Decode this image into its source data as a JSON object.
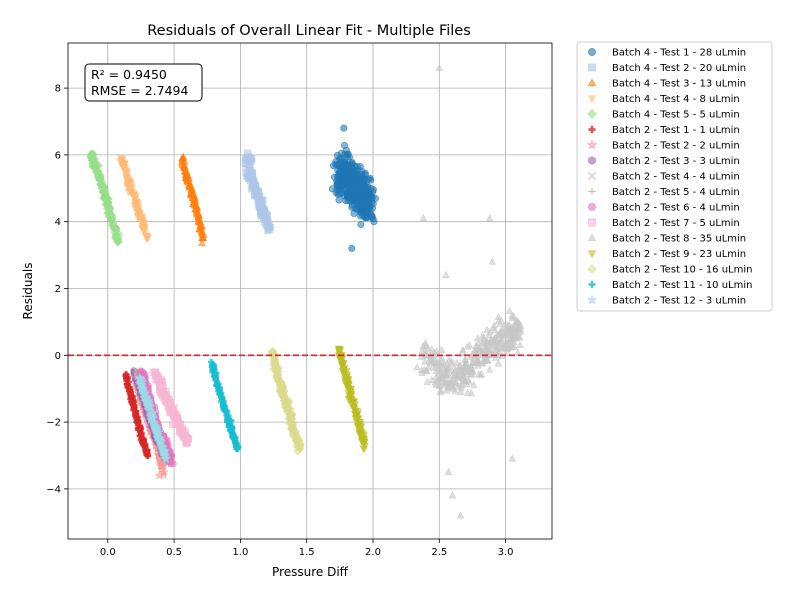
{
  "chart_data": {
    "type": "scatter",
    "title": "Residuals of Overall Linear Fit - Multiple Files",
    "xlabel": "Pressure Diff",
    "ylabel": "Residuals",
    "xlim": [
      -0.3,
      3.35
    ],
    "ylim": [
      -5.5,
      9.35
    ],
    "xticks": [
      0.0,
      0.5,
      1.0,
      1.5,
      2.0,
      2.5,
      3.0
    ],
    "xtick_labels": [
      "0.0",
      "0.5",
      "1.0",
      "1.5",
      "2.0",
      "2.5",
      "3.0"
    ],
    "yticks": [
      -4,
      -2,
      0,
      2,
      4,
      6,
      8
    ],
    "ytick_labels": [
      "−4",
      "−2",
      "0",
      "2",
      "4",
      "6",
      "8"
    ],
    "grid": true,
    "legend_position": "outside-right-top",
    "reference_line": {
      "y": 0,
      "style": "dashed",
      "color": "#d62728"
    },
    "stats_box": {
      "r2": "R² = 0.9450",
      "rmse": "RMSE = 2.7494"
    },
    "series": [
      {
        "name": "Batch 4 - Test 1 - 28 uLmin",
        "color": "#1f77b4",
        "marker": "circle",
        "x": [
          1.74,
          1.78,
          1.82,
          1.86,
          1.9,
          1.94,
          1.97
        ],
        "y": [
          5.3,
          5.5,
          5.2,
          5.0,
          4.8,
          4.6,
          4.6
        ],
        "x_spread": 0.11,
        "y_spread": 1.3
      },
      {
        "name": "Batch 4 - Test 2 - 20 uLmin",
        "color": "#aec7e8",
        "marker": "square",
        "x": [
          1.05,
          1.09,
          1.13,
          1.17,
          1.21
        ],
        "y": [
          5.9,
          5.3,
          4.8,
          4.3,
          3.8
        ],
        "x_spread": 0.05,
        "y_spread": 0.35
      },
      {
        "name": "Batch 4 - Test 3 - 13 uLmin",
        "color": "#ff7f0e",
        "marker": "triangle-up",
        "x": [
          0.56,
          0.6,
          0.64,
          0.68,
          0.72
        ],
        "y": [
          5.9,
          5.3,
          4.8,
          4.2,
          3.5
        ],
        "x_spread": 0.02,
        "y_spread": 0.25
      },
      {
        "name": "Batch 4 - Test 4 - 8 uLmin",
        "color": "#ffbb78",
        "marker": "triangle-down",
        "x": [
          0.1,
          0.15,
          0.2,
          0.25,
          0.3
        ],
        "y": [
          5.9,
          5.3,
          4.7,
          4.1,
          3.5
        ],
        "x_spread": 0.03,
        "y_spread": 0.25
      },
      {
        "name": "Batch 4 - Test 5 - 5 uLmin",
        "color": "#98df8a",
        "marker": "diamond",
        "x": [
          -0.13,
          -0.08,
          -0.03,
          0.02,
          0.08
        ],
        "y": [
          6.0,
          5.5,
          4.9,
          4.2,
          3.4
        ],
        "x_spread": 0.03,
        "y_spread": 0.25
      },
      {
        "name": "Batch 2 - Test 1 - 1 uLmin",
        "color": "#d62728",
        "marker": "plus",
        "x": [
          0.14,
          0.18,
          0.22,
          0.26,
          0.3
        ],
        "y": [
          -0.6,
          -1.3,
          -1.9,
          -2.5,
          -3.0
        ],
        "x_spread": 0.02,
        "y_spread": 0.2
      },
      {
        "name": "Batch 2 - Test 2 - 2 uLmin",
        "color": "#ff9896",
        "marker": "star",
        "x": [
          0.2,
          0.26,
          0.32,
          0.38,
          0.42
        ],
        "y": [
          -0.6,
          -1.4,
          -2.1,
          -2.8,
          -3.5
        ],
        "x_spread": 0.02,
        "y_spread": 0.2
      },
      {
        "name": "Batch 2 - Test 3 - 3 uLmin",
        "color": "#9467bd",
        "marker": "hexagon",
        "x": [
          0.2,
          0.26,
          0.32,
          0.38,
          0.44
        ],
        "y": [
          -0.5,
          -1.2,
          -1.9,
          -2.6,
          -3.1
        ],
        "x_spread": 0.02,
        "y_spread": 0.2
      },
      {
        "name": "Batch 2 - Test 4 - 4 uLmin",
        "color": "#c5b0d5",
        "marker": "x",
        "x": [
          0.22,
          0.28,
          0.34,
          0.4,
          0.46
        ],
        "y": [
          -0.5,
          -1.2,
          -1.9,
          -2.6,
          -3.2
        ],
        "x_spread": 0.02,
        "y_spread": 0.2
      },
      {
        "name": "Batch 2 - Test 5 - 4 uLmin",
        "color": "#c49c94",
        "marker": "thin-plus",
        "x": [
          0.22,
          0.28,
          0.34,
          0.4,
          0.46
        ],
        "y": [
          -0.5,
          -1.2,
          -1.9,
          -2.6,
          -3.2
        ],
        "x_spread": 0.02,
        "y_spread": 0.2
      },
      {
        "name": "Batch 2 - Test 6 - 4 uLmin",
        "color": "#e377c2",
        "marker": "circle",
        "x": [
          0.26,
          0.3,
          0.34,
          0.38,
          0.44,
          0.48
        ],
        "y": [
          -0.5,
          -1.1,
          -1.6,
          -2.2,
          -2.7,
          -3.2
        ],
        "x_spread": 0.03,
        "y_spread": 0.25
      },
      {
        "name": "Batch 2 - Test 7 - 5 uLmin",
        "color": "#f7b6d2",
        "marker": "square",
        "x": [
          0.36,
          0.42,
          0.48,
          0.54,
          0.6
        ],
        "y": [
          -0.5,
          -1.1,
          -1.6,
          -2.1,
          -2.6
        ],
        "x_spread": 0.04,
        "y_spread": 0.3
      },
      {
        "name": "Batch 2 - Test 8 - 35 uLmin",
        "color": "#c7c7c7",
        "marker": "triangle-up",
        "x": [
          2.4,
          2.55,
          2.7,
          2.85,
          3.0,
          3.1
        ],
        "y": [
          0.0,
          -0.6,
          -0.5,
          0.2,
          0.6,
          0.8
        ],
        "x_spread": 0.12,
        "y_spread": 1.1
      },
      {
        "name": "Batch 2 - Test 9 - 23 uLmin",
        "color": "#bcbd22",
        "marker": "triangle-down",
        "x": [
          1.74,
          1.78,
          1.82,
          1.86,
          1.9,
          1.94
        ],
        "y": [
          0.2,
          -0.4,
          -1.0,
          -1.6,
          -2.2,
          -2.7
        ],
        "x_spread": 0.03,
        "y_spread": 0.3
      },
      {
        "name": "Batch 2 - Test 10 - 16 uLmin",
        "color": "#dbdb8d",
        "marker": "diamond",
        "x": [
          1.24,
          1.28,
          1.32,
          1.36,
          1.4,
          1.45
        ],
        "y": [
          0.1,
          -0.5,
          -1.1,
          -1.6,
          -2.2,
          -2.8
        ],
        "x_spread": 0.03,
        "y_spread": 0.3
      },
      {
        "name": "Batch 2 - Test 11 - 10 uLmin",
        "color": "#17becf",
        "marker": "plus",
        "x": [
          0.78,
          0.83,
          0.88,
          0.93,
          0.98
        ],
        "y": [
          -0.2,
          -0.9,
          -1.6,
          -2.2,
          -2.8
        ],
        "x_spread": 0.02,
        "y_spread": 0.2
      },
      {
        "name": "Batch 2 - Test 12 - 3 uLmin",
        "color": "#9edae5",
        "marker": "star",
        "x": [
          0.24,
          0.29,
          0.34,
          0.39,
          0.44
        ],
        "y": [
          -0.7,
          -1.3,
          -1.9,
          -2.5,
          -3.1
        ],
        "x_spread": 0.02,
        "y_spread": 0.2
      }
    ],
    "outliers": [
      {
        "series": 12,
        "x": 2.5,
        "y": 8.6
      },
      {
        "series": 12,
        "x": 2.38,
        "y": 4.1
      },
      {
        "series": 12,
        "x": 2.88,
        "y": 4.1
      },
      {
        "series": 12,
        "x": 2.6,
        "y": -4.2
      },
      {
        "series": 12,
        "x": 2.66,
        "y": -4.8
      },
      {
        "series": 12,
        "x": 3.05,
        "y": -3.1
      },
      {
        "series": 12,
        "x": 2.57,
        "y": -3.5
      },
      {
        "series": 12,
        "x": 2.9,
        "y": 2.8
      },
      {
        "series": 12,
        "x": 2.55,
        "y": 2.4
      },
      {
        "series": 0,
        "x": 1.78,
        "y": 6.8
      },
      {
        "series": 0,
        "x": 1.84,
        "y": 3.2
      },
      {
        "series": 6,
        "x": 0.39,
        "y": -3.6
      }
    ]
  }
}
